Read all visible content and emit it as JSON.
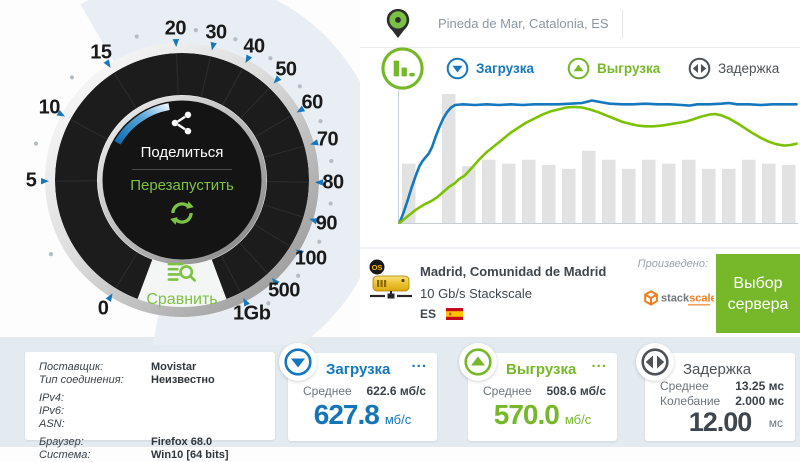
{
  "header": {
    "location": "Pineda de Mar, Catalonia, ES"
  },
  "legend": {
    "download_label": "Загрузка",
    "upload_label": "Выгрузка",
    "latency_label": "Задержка"
  },
  "gauge": {
    "share_label": "Поделиться",
    "restart_label": "Перезапустить",
    "compare_label": "Сравнить",
    "scale": [
      {
        "label": "0",
        "angle": 211.5
      },
      {
        "label": "5",
        "angle": 269.5
      },
      {
        "label": "10",
        "angle": 298.5
      },
      {
        "label": "15",
        "angle": 327.5
      },
      {
        "label": "20",
        "angle": 357.5
      },
      {
        "label": "30",
        "angle": 13
      },
      {
        "label": "40",
        "angle": 28.5
      },
      {
        "label": "50",
        "angle": 43.5
      },
      {
        "label": "60",
        "angle": 59.5
      },
      {
        "label": "70",
        "angle": 74.5
      },
      {
        "label": "80",
        "angle": 91
      },
      {
        "label": "90",
        "angle": 107
      },
      {
        "label": "100",
        "angle": 121.5
      },
      {
        "label": "500",
        "angle": 137.5
      },
      {
        "label": "1Gb",
        "angle": 152.5
      }
    ]
  },
  "chart_data": {
    "type": "mixed-bar-line",
    "title": "",
    "grid": false,
    "ylim_pct": [
      0,
      100
    ],
    "bars": {
      "name": "interval-bars",
      "color": "#e2e2e2",
      "values_pct": [
        46,
        0,
        100,
        44,
        49,
        46,
        49,
        45,
        42,
        56,
        49,
        42,
        49,
        46,
        49,
        42,
        42,
        49,
        46,
        45
      ]
    },
    "series": [
      {
        "key": "download",
        "name": "Загрузка",
        "color": "#1577be",
        "points_pct": [
          [
            0,
            0
          ],
          [
            1,
            8
          ],
          [
            2,
            17
          ],
          [
            3,
            27
          ],
          [
            4,
            36
          ],
          [
            5,
            44
          ],
          [
            5.8,
            48
          ],
          [
            6.6,
            51
          ],
          [
            7.4,
            54
          ],
          [
            8.2,
            59
          ],
          [
            9,
            66
          ],
          [
            10,
            74
          ],
          [
            11,
            81
          ],
          [
            12,
            86
          ],
          [
            13,
            89.5
          ],
          [
            14,
            91.5
          ],
          [
            16,
            92
          ],
          [
            19,
            91.5
          ],
          [
            22,
            92
          ],
          [
            25,
            91.5
          ],
          [
            28,
            92
          ],
          [
            31,
            91.5
          ],
          [
            34,
            92
          ],
          [
            37,
            92
          ],
          [
            40,
            92
          ],
          [
            43,
            92.5
          ],
          [
            46,
            93
          ],
          [
            48.5,
            95
          ],
          [
            51,
            93.5
          ],
          [
            53,
            92.5
          ],
          [
            56,
            92
          ],
          [
            59,
            92
          ],
          [
            62,
            92.5
          ],
          [
            65,
            92
          ],
          [
            68,
            92
          ],
          [
            71,
            91.5
          ],
          [
            73,
            91
          ],
          [
            75,
            92
          ],
          [
            78,
            92
          ],
          [
            81,
            92.5
          ],
          [
            83,
            93
          ],
          [
            85,
            92
          ],
          [
            88,
            92
          ],
          [
            91,
            91.5
          ],
          [
            94,
            92
          ],
          [
            97,
            92
          ],
          [
            100,
            92
          ]
        ]
      },
      {
        "key": "upload",
        "name": "Выгрузка",
        "color": "#7cc203",
        "points_pct": [
          [
            0,
            0
          ],
          [
            2,
            5
          ],
          [
            4,
            10
          ],
          [
            6,
            14
          ],
          [
            8,
            17
          ],
          [
            9.5,
            20
          ],
          [
            11,
            24
          ],
          [
            12.5,
            28
          ],
          [
            14,
            31
          ],
          [
            15,
            34
          ],
          [
            16.5,
            37
          ],
          [
            18,
            42
          ],
          [
            20,
            49
          ],
          [
            22,
            55
          ],
          [
            24,
            60
          ],
          [
            26,
            65
          ],
          [
            28,
            70
          ],
          [
            30,
            74
          ],
          [
            32,
            78
          ],
          [
            34,
            81
          ],
          [
            36,
            84
          ],
          [
            38,
            86.5
          ],
          [
            40,
            88
          ],
          [
            42,
            89.5
          ],
          [
            44,
            90
          ],
          [
            46,
            89.5
          ],
          [
            48,
            88
          ],
          [
            50,
            86
          ],
          [
            52,
            83.5
          ],
          [
            54,
            81
          ],
          [
            56,
            78.5
          ],
          [
            58,
            77
          ],
          [
            60,
            75.5
          ],
          [
            62,
            75
          ],
          [
            64,
            75
          ],
          [
            66,
            75.5
          ],
          [
            68,
            76.5
          ],
          [
            70,
            77.5
          ],
          [
            72,
            78.5
          ],
          [
            74,
            80.5
          ],
          [
            76,
            82.5
          ],
          [
            78,
            84
          ],
          [
            79.5,
            84.5
          ],
          [
            81,
            83.5
          ],
          [
            83,
            81
          ],
          [
            85,
            77.5
          ],
          [
            87,
            73.5
          ],
          [
            89,
            69.5
          ],
          [
            91,
            66
          ],
          [
            93,
            63
          ],
          [
            95,
            61
          ],
          [
            97,
            60
          ],
          [
            98.5,
            60.5
          ],
          [
            100,
            61.5
          ]
        ]
      }
    ]
  },
  "server": {
    "line1": "Madrid, Comunidad de Madrid",
    "line2": "10 Gb/s Stackscale",
    "country_code": "ES",
    "produced_by_label": "Произведено:",
    "logo_stack": "stack",
    "logo_scale": "scale",
    "button_label": "Выбор сервера"
  },
  "connection_info": {
    "rows": [
      {
        "label": "Поставщик:",
        "value": "Movistar"
      },
      {
        "label": "Тип соединения:",
        "value": "Неизвестно"
      },
      {
        "label": "IPv4:",
        "value": ""
      },
      {
        "label": "IPv6:",
        "value": ""
      },
      {
        "label": "ASN:",
        "value": ""
      },
      {
        "label": "Браузер:",
        "value": "Firefox 68.0"
      },
      {
        "label": "Система:",
        "value": "Win10 [64 bits]"
      }
    ]
  },
  "cards": {
    "download": {
      "title": "Загрузка",
      "menu": "...",
      "avg_label": "Среднее",
      "avg_value": "622.6 мб/с",
      "value": "627.8",
      "unit": "мб/с"
    },
    "upload": {
      "title": "Выгрузка",
      "menu": "...",
      "avg_label": "Среднее",
      "avg_value": "508.6 мб/с",
      "value": "570.0",
      "unit": "мб/с"
    },
    "latency": {
      "title": "Задержка",
      "avg_label": "Среднее",
      "avg_value": "13.25 мс",
      "jitter_label": "Колебание",
      "jitter_value": "2.000 мс",
      "value": "12.00",
      "unit": "мс"
    }
  },
  "colors": {
    "accent_blue": "#1577be",
    "accent_green": "#76b82a",
    "gauge_green": "#7dc243",
    "chart_green": "#7cc203",
    "band": "#e8eef4",
    "dark_ring": "#1c1c1c"
  }
}
